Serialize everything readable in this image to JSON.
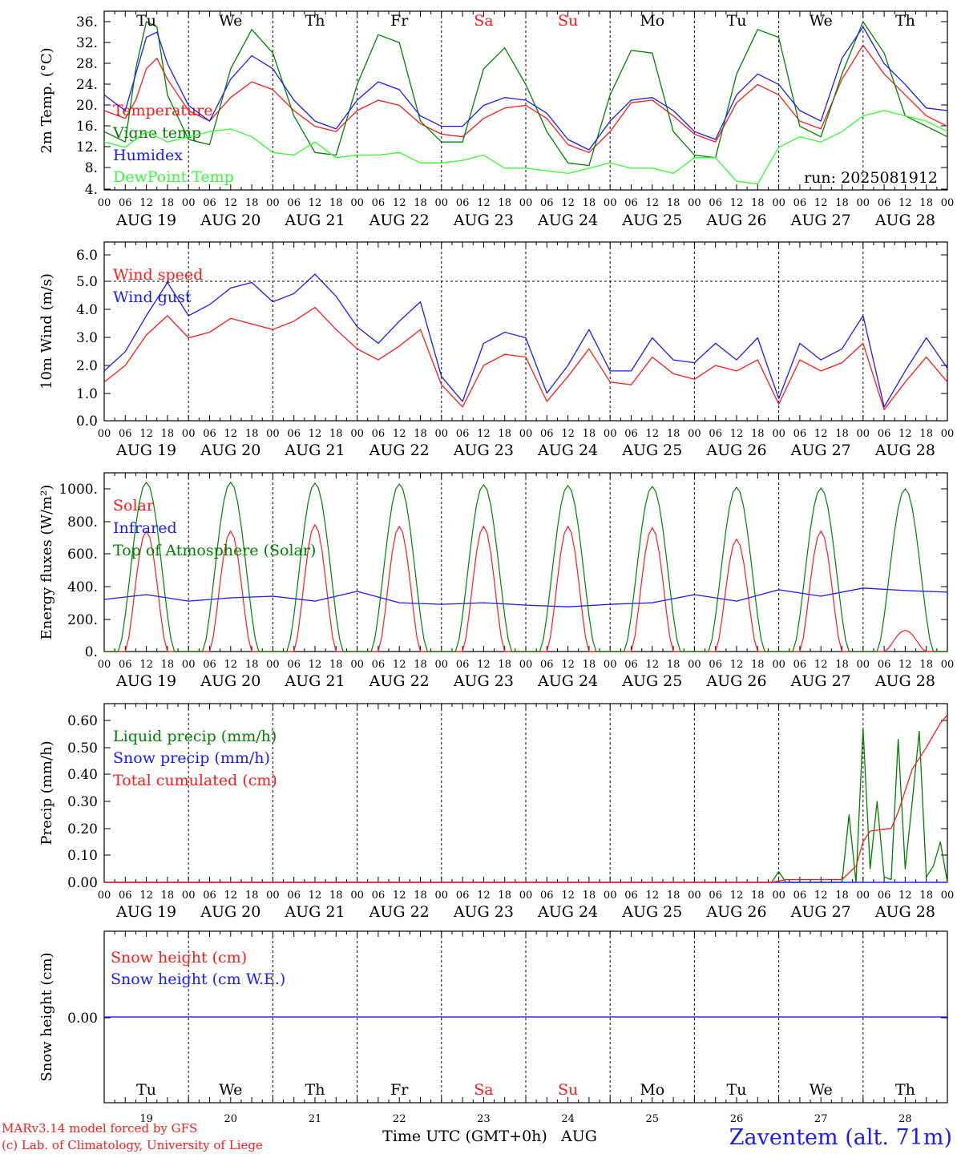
{
  "colors": {
    "red": "#ff1a1a",
    "green": "#008000",
    "blue": "#1a1aff",
    "lightgreen": "#33ff33",
    "weekend": "#ff1a1a",
    "axis": "#000000"
  },
  "days": [
    "Tu",
    "We",
    "Th",
    "Fr",
    "Sa",
    "Su",
    "Mo",
    "Tu",
    "We",
    "Th"
  ],
  "weekend_days": [
    4,
    5
  ],
  "dates": [
    "AUG 19",
    "AUG 20",
    "AUG 21",
    "AUG 22",
    "AUG 23",
    "AUG 24",
    "AUG 25",
    "AUG 26",
    "AUG 27",
    "AUG 28"
  ],
  "hour_ticks": [
    "00",
    "06",
    "12",
    "18"
  ],
  "day_numbers": [
    "19",
    "20",
    "21",
    "22",
    "23",
    "24",
    "25",
    "26",
    "27",
    "28"
  ],
  "footer": {
    "model": "MARv3.14 model forced by GFS",
    "lab": "(c) Lab. of Climatology, University of Liege",
    "time_label": "Time UTC (GMT+0h)",
    "month": "AUG",
    "station": "Zaventem (alt. 71m)"
  },
  "chart_data": [
    {
      "type": "line",
      "ylabel": "2m Temp. (°C)",
      "ylim": [
        4,
        38
      ],
      "yticks": [
        "4.",
        "8.",
        "12.",
        "16.",
        "20.",
        "24.",
        "28.",
        "32.",
        "36."
      ],
      "annotation": "run: 2025081912",
      "x_unit": "hours since AUG 19 00 UTC",
      "series": [
        {
          "name": "Temperature",
          "color": "red",
          "x": [
            0,
            6,
            9,
            12,
            15,
            18,
            24,
            30,
            36,
            42,
            48,
            54,
            60,
            66,
            72,
            78,
            84,
            90,
            96,
            102,
            108,
            114,
            120,
            126,
            132,
            138,
            144,
            150,
            156,
            162,
            168,
            174,
            180,
            186,
            192,
            198,
            204,
            210,
            216,
            222,
            228,
            234,
            240
          ],
          "y": [
            19,
            17.5,
            21,
            27,
            29,
            25,
            19,
            17,
            21.5,
            24.5,
            23,
            19,
            16,
            15,
            19,
            21,
            20,
            16.5,
            14.5,
            14,
            17.5,
            19.5,
            20,
            17.5,
            12.5,
            11,
            15,
            20.5,
            21,
            18,
            14.5,
            13,
            20.5,
            24,
            22,
            17,
            15.5,
            25,
            31.5,
            26,
            22,
            18,
            16
          ]
        },
        {
          "name": "Vigne temp",
          "color": "green",
          "x": [
            0,
            6,
            9,
            12,
            15,
            18,
            24,
            30,
            36,
            42,
            48,
            54,
            60,
            66,
            72,
            78,
            84,
            90,
            96,
            102,
            108,
            114,
            120,
            126,
            132,
            138,
            144,
            150,
            156,
            162,
            168,
            174,
            180,
            186,
            192,
            198,
            204,
            210,
            216,
            222,
            228,
            234,
            240
          ],
          "y": [
            15,
            13,
            27,
            36,
            35,
            22,
            13.5,
            12.5,
            27,
            34.5,
            30,
            18,
            11,
            10.5,
            24,
            33.5,
            32,
            17,
            13,
            13,
            27,
            31,
            24,
            15,
            9,
            8.5,
            22,
            30.5,
            30,
            15,
            10.5,
            10,
            26,
            34.5,
            33,
            16,
            14,
            26,
            36,
            30,
            18,
            16,
            14
          ]
        },
        {
          "name": "Humidex",
          "color": "blue",
          "x": [
            0,
            6,
            9,
            12,
            15,
            18,
            24,
            30,
            36,
            42,
            48,
            54,
            60,
            66,
            72,
            78,
            84,
            90,
            96,
            102,
            108,
            114,
            120,
            126,
            132,
            138,
            144,
            150,
            156,
            162,
            168,
            174,
            180,
            186,
            192,
            198,
            204,
            210,
            216,
            222,
            228,
            234,
            240
          ],
          "y": [
            22,
            19,
            26,
            33,
            34,
            28,
            20,
            17,
            25,
            29.5,
            27,
            21,
            17,
            15.5,
            21,
            24.5,
            23,
            18,
            16,
            16,
            20,
            21.5,
            21,
            18.5,
            13.5,
            11.5,
            17,
            21,
            21.5,
            19,
            15,
            13.5,
            22,
            26,
            24,
            19,
            17,
            29,
            35,
            28,
            24,
            19.5,
            19
          ]
        },
        {
          "name": "DewPoint Temp",
          "color": "lightgreen",
          "x": [
            0,
            6,
            12,
            18,
            24,
            30,
            36,
            42,
            48,
            54,
            60,
            66,
            72,
            78,
            84,
            90,
            96,
            102,
            108,
            114,
            120,
            126,
            132,
            138,
            144,
            150,
            156,
            162,
            168,
            174,
            180,
            186,
            192,
            198,
            204,
            210,
            216,
            222,
            228,
            234,
            240
          ],
          "y": [
            13,
            12,
            15,
            13,
            14,
            15,
            15.5,
            14,
            11,
            10.5,
            13,
            10,
            10.5,
            10.5,
            11,
            9,
            9,
            9.5,
            10.5,
            8,
            8,
            7.5,
            7,
            8,
            9,
            8,
            8,
            7,
            10,
            10,
            5.5,
            5,
            12,
            14,
            13,
            15,
            18,
            19,
            18,
            17,
            15
          ]
        }
      ]
    },
    {
      "type": "line",
      "ylabel": "10m Wind (m/s)",
      "ylim": [
        0,
        6.6
      ],
      "yticks": [
        "0.0",
        "1.0",
        "2.0",
        "3.0",
        "4.0",
        "5.0",
        "6.0"
      ],
      "x_unit": "hours since AUG 19 00 UTC",
      "series": [
        {
          "name": "Wind speed",
          "color": "red",
          "x": [
            0,
            6,
            12,
            18,
            24,
            30,
            36,
            42,
            48,
            54,
            60,
            66,
            72,
            78,
            84,
            90,
            96,
            102,
            108,
            114,
            120,
            126,
            132,
            138,
            144,
            150,
            156,
            162,
            168,
            174,
            180,
            186,
            192,
            198,
            204,
            210,
            216,
            222,
            228,
            234,
            240
          ],
          "y": [
            1.4,
            2.0,
            3.1,
            3.8,
            3.0,
            3.2,
            3.7,
            3.5,
            3.3,
            3.6,
            4.1,
            3.3,
            2.6,
            2.2,
            2.7,
            3.3,
            1.3,
            0.5,
            2.0,
            2.4,
            2.3,
            0.7,
            1.6,
            2.6,
            1.4,
            1.3,
            2.3,
            1.7,
            1.5,
            2.0,
            1.8,
            2.2,
            0.6,
            2.2,
            1.8,
            2.1,
            2.8,
            0.4,
            1.4,
            2.3,
            1.4
          ]
        },
        {
          "name": "Wind gust",
          "color": "blue",
          "x": [
            0,
            6,
            12,
            18,
            24,
            30,
            36,
            42,
            48,
            54,
            60,
            66,
            72,
            78,
            84,
            90,
            96,
            102,
            108,
            114,
            120,
            126,
            132,
            138,
            144,
            150,
            156,
            162,
            168,
            174,
            180,
            186,
            192,
            198,
            204,
            210,
            216,
            222,
            228,
            234,
            240
          ],
          "y": [
            1.8,
            2.5,
            3.8,
            5.0,
            3.8,
            4.2,
            4.8,
            5.0,
            4.3,
            4.6,
            5.3,
            4.5,
            3.4,
            2.8,
            3.6,
            4.3,
            1.6,
            0.7,
            2.8,
            3.2,
            3.0,
            1.0,
            2.0,
            3.3,
            1.8,
            1.8,
            3.0,
            2.2,
            2.1,
            2.8,
            2.2,
            3.0,
            0.8,
            2.8,
            2.2,
            2.6,
            3.8,
            0.5,
            1.8,
            3.0,
            1.9
          ]
        }
      ]
    },
    {
      "type": "line",
      "ylabel": "Energy fluxes (W/m²)",
      "ylim": [
        0,
        1100
      ],
      "yticks": [
        "0.",
        "200.",
        "400.",
        "600.",
        "800.",
        "1000."
      ],
      "x_unit": "hours since AUG 19 00 UTC",
      "series": [
        {
          "name": "Solar",
          "color": "red",
          "day_peaks": [
            740,
            740,
            780,
            770,
            770,
            770,
            760,
            690,
            740,
            130
          ]
        },
        {
          "name": "Infrared",
          "color": "blue",
          "x": [
            0,
            12,
            24,
            36,
            48,
            60,
            72,
            84,
            96,
            108,
            120,
            132,
            144,
            156,
            168,
            180,
            192,
            204,
            216,
            228,
            240
          ],
          "y": [
            320,
            350,
            310,
            330,
            340,
            310,
            370,
            300,
            290,
            300,
            285,
            275,
            290,
            300,
            350,
            310,
            380,
            340,
            390,
            375,
            365
          ]
        },
        {
          "name": "Top of Atmosphere (Solar)",
          "color": "green",
          "day_peaks": [
            1040,
            1040,
            1035,
            1030,
            1025,
            1020,
            1015,
            1010,
            1005,
            1000
          ]
        }
      ]
    },
    {
      "type": "line",
      "ylabel": "Precip (mm/h)",
      "ylim": [
        0,
        0.65
      ],
      "yticks": [
        "0.00",
        "0.10",
        "0.20",
        "0.30",
        "0.40",
        "0.50",
        "0.60"
      ],
      "x_unit": "hours since AUG 19 00 UTC",
      "series": [
        {
          "name": "Liquid precip (mm/h)",
          "color": "green",
          "x": [
            0,
            190,
            192,
            194,
            196,
            210,
            212,
            214,
            216,
            218,
            220,
            222,
            224,
            226,
            228,
            230,
            232,
            234,
            236,
            238,
            240
          ],
          "y": [
            0,
            0,
            0.04,
            0,
            0,
            0,
            0.25,
            0,
            0.57,
            0.05,
            0.3,
            0.02,
            0.01,
            0.53,
            0.05,
            0.3,
            0.56,
            0.02,
            0.06,
            0.15,
            0
          ]
        },
        {
          "name": "Snow precip (mm/h)",
          "color": "blue",
          "x": [
            0,
            240
          ],
          "y": [
            0,
            0
          ]
        },
        {
          "name": "Total cumulated (cm)",
          "color": "red",
          "x": [
            0,
            190,
            194,
            210,
            214,
            216,
            218,
            224,
            226,
            230,
            234,
            238,
            240
          ],
          "y": [
            0,
            0,
            0.01,
            0.01,
            0.06,
            0.15,
            0.19,
            0.2,
            0.26,
            0.42,
            0.5,
            0.59,
            0.62
          ]
        }
      ]
    },
    {
      "type": "line",
      "ylabel": "Snow height (cm)",
      "ylim": [
        -1,
        1
      ],
      "yticks": [
        "0.00"
      ],
      "x_unit": "hours since AUG 19 00 UTC",
      "series": [
        {
          "name": "Snow height (cm)",
          "color": "red",
          "x": [
            0,
            240
          ],
          "y": [
            0,
            0
          ]
        },
        {
          "name": "Snow height (cm W.E.)",
          "color": "blue",
          "x": [
            0,
            240
          ],
          "y": [
            0,
            0
          ]
        }
      ]
    }
  ]
}
